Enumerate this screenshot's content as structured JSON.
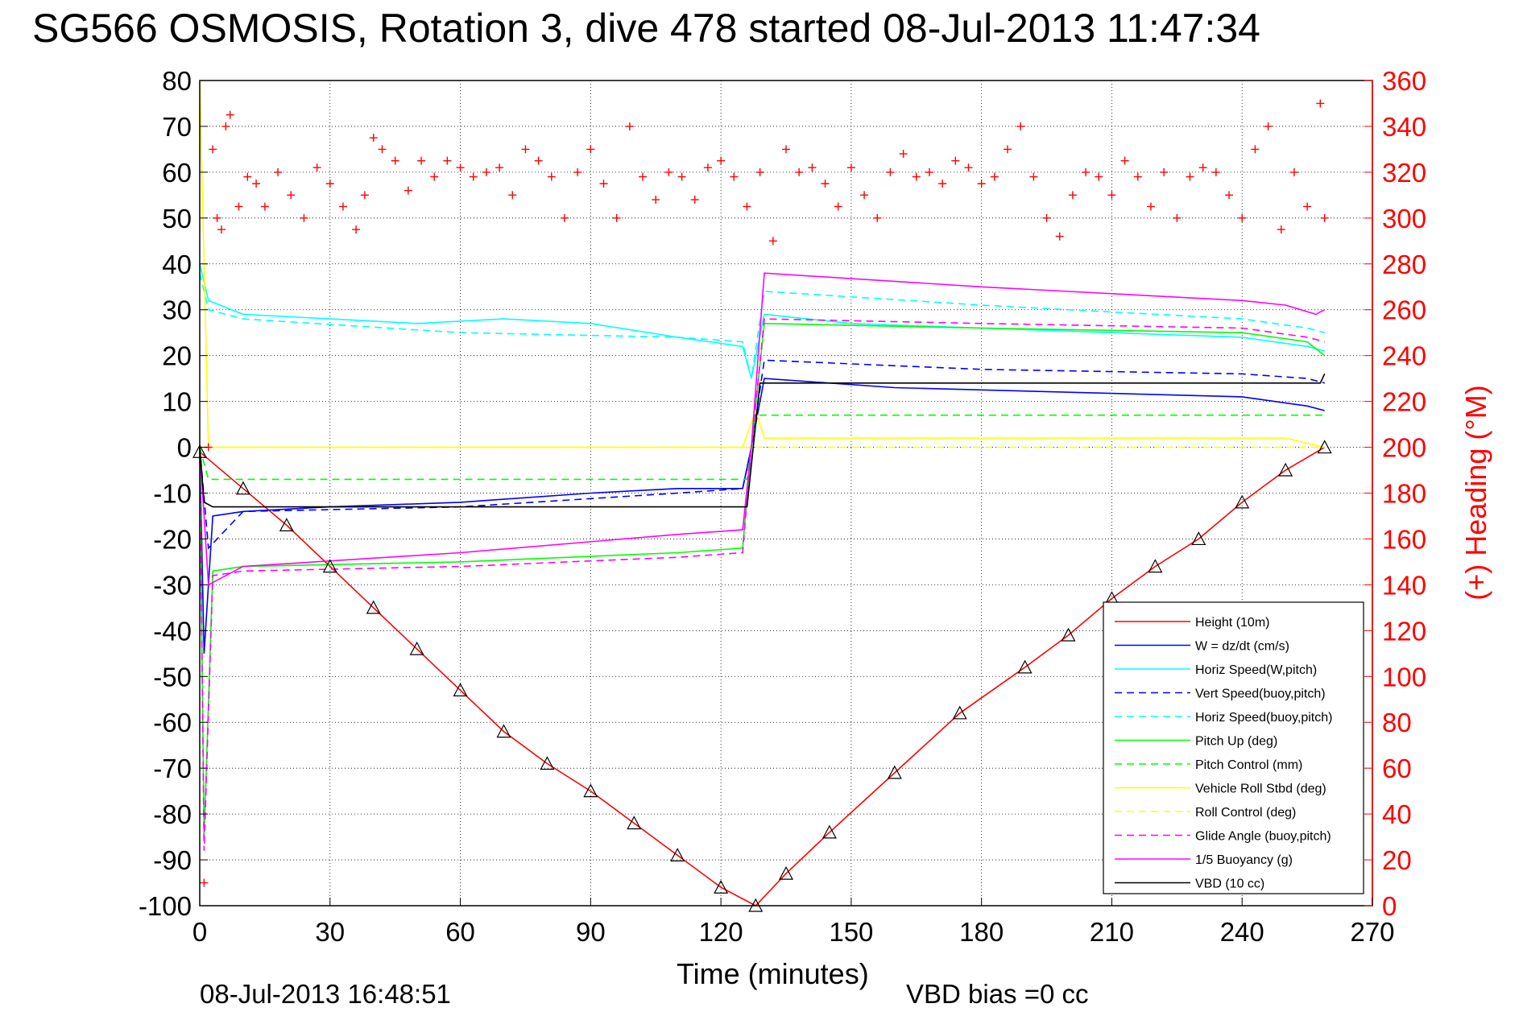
{
  "chart_data": {
    "type": "line",
    "title": "SG566 OSMOSIS, Rotation 3, dive 478 started 08-Jul-2013 11:47:34",
    "xlabel": "Time (minutes)",
    "ylabel_right": "(+) Heading (°M)",
    "xlim": [
      0,
      270
    ],
    "ylim": [
      -100,
      80
    ],
    "ylim_right": [
      0,
      360
    ],
    "x_ticks": [
      "0",
      "30",
      "60",
      "90",
      "120",
      "150",
      "180",
      "210",
      "240",
      "270"
    ],
    "y_ticks": [
      "80",
      "70",
      "60",
      "50",
      "40",
      "30",
      "20",
      "10",
      "0",
      "-10",
      "-20",
      "-30",
      "-40",
      "-50",
      "-60",
      "-70",
      "-80",
      "-90",
      "-100"
    ],
    "y_ticks_right": [
      "360",
      "340",
      "320",
      "300",
      "280",
      "260",
      "240",
      "220",
      "200",
      "180",
      "160",
      "140",
      "120",
      "100",
      "80",
      "60",
      "40",
      "20",
      "0"
    ],
    "grid": true,
    "legend_position": "lower-right",
    "footer_left": "08-Jul-2013 16:48:51",
    "footer_right": "VBD bias =0 cc",
    "series": [
      {
        "name": "Height (10m)",
        "color": "#ff0000",
        "style": "solid",
        "x": [
          0,
          10,
          20,
          30,
          40,
          50,
          60,
          70,
          80,
          90,
          100,
          110,
          120,
          128,
          135,
          145,
          160,
          175,
          190,
          200,
          210,
          220,
          230,
          240,
          250,
          259
        ],
        "y": [
          -1,
          -9,
          -17,
          -26,
          -35,
          -44,
          -53,
          -62,
          -69,
          -75,
          -82,
          -89,
          -96,
          -100,
          -93,
          -84,
          -71,
          -58,
          -48,
          -41,
          -33,
          -26,
          -20,
          -12,
          -5,
          0
        ]
      },
      {
        "name": "W = dz/dt (cm/s)",
        "color": "#0000ff",
        "style": "solid",
        "x": [
          0,
          1,
          3,
          10,
          30,
          60,
          90,
          110,
          125,
          127,
          130,
          160,
          200,
          240,
          255,
          259
        ],
        "y": [
          0,
          -45,
          -15,
          -14,
          -13,
          -12,
          -10,
          -9,
          -9,
          0,
          15,
          13,
          12,
          11,
          9,
          8
        ]
      },
      {
        "name": "Horiz Speed(W,pitch)",
        "color": "#00ffff",
        "style": "solid",
        "x": [
          0,
          2,
          10,
          30,
          50,
          70,
          90,
          110,
          125,
          127,
          130,
          150,
          180,
          210,
          240,
          255,
          259
        ],
        "y": [
          40,
          32,
          29,
          28,
          27,
          28,
          27,
          24,
          22,
          15,
          29,
          27,
          26,
          25,
          24,
          22,
          21
        ]
      },
      {
        "name": "Vert Speed(buoy,pitch)",
        "color": "#0000ff",
        "style": "dashed",
        "x": [
          0,
          2,
          10,
          60,
          110,
          125,
          127,
          130,
          180,
          240,
          255,
          259
        ],
        "y": [
          0,
          -22,
          -14,
          -13,
          -10,
          -9,
          0,
          19,
          17,
          16,
          15,
          14
        ]
      },
      {
        "name": "Horiz Speed(buoy,pitch)",
        "color": "#00ffff",
        "style": "dashed",
        "x": [
          0,
          2,
          10,
          60,
          110,
          125,
          127,
          130,
          180,
          240,
          255,
          259
        ],
        "y": [
          38,
          30,
          28,
          25,
          24,
          23,
          15,
          34,
          31,
          28,
          26,
          25
        ]
      },
      {
        "name": "Pitch Up (deg)",
        "color": "#00ff00",
        "style": "solid",
        "x": [
          0,
          1,
          3,
          10,
          60,
          110,
          125,
          127,
          130,
          180,
          240,
          255,
          259
        ],
        "y": [
          0,
          -85,
          -27,
          -26,
          -25,
          -23,
          -22,
          0,
          27,
          26,
          25,
          23,
          20
        ]
      },
      {
        "name": "Pitch Control (mm)",
        "color": "#00ff00",
        "style": "dashed",
        "x": [
          0,
          2,
          126,
          128,
          259
        ],
        "y": [
          0,
          -7,
          -7,
          7,
          7
        ]
      },
      {
        "name": "Vehicle Roll Stbd (deg)",
        "color": "#ffff00",
        "style": "solid",
        "x": [
          0,
          2,
          5,
          125,
          128,
          130,
          250,
          259
        ],
        "y": [
          80,
          0,
          0,
          0,
          8,
          2,
          2,
          0
        ]
      },
      {
        "name": "Roll Control (deg)",
        "color": "#ffff00",
        "style": "dashed",
        "x": [
          0,
          2,
          126,
          128,
          259
        ],
        "y": [
          0,
          0,
          0,
          0,
          0
        ]
      },
      {
        "name": "Glide Angle (buoy,pitch)",
        "color": "#ff00ff",
        "style": "dashed",
        "x": [
          0,
          1,
          3,
          10,
          60,
          110,
          125,
          127,
          130,
          180,
          240,
          255,
          259
        ],
        "y": [
          0,
          -88,
          -28,
          -27,
          -26,
          -24,
          -23,
          0,
          28,
          27,
          26,
          24,
          23
        ]
      },
      {
        "name": "1/5 Buoyancy (g)",
        "color": "#ff00ff",
        "style": "solid",
        "x": [
          0,
          2,
          10,
          60,
          110,
          125,
          127,
          130,
          180,
          240,
          250,
          257,
          259
        ],
        "y": [
          0,
          -30,
          -26,
          -23,
          -19,
          -18,
          0,
          38,
          35,
          32,
          31,
          29,
          30
        ]
      },
      {
        "name": "VBD (10 cc)",
        "color": "#000000",
        "style": "solid",
        "x": [
          0,
          1,
          3,
          126,
          129,
          258,
          259
        ],
        "y": [
          0,
          -12,
          -13,
          -13,
          14,
          14,
          16
        ]
      }
    ],
    "heading_series": {
      "name": "Heading",
      "color": "#ff0000",
      "marker": "+",
      "axis": "right",
      "x": [
        1,
        2,
        3,
        4,
        5,
        6,
        7,
        9,
        11,
        13,
        15,
        18,
        21,
        24,
        27,
        30,
        33,
        36,
        38,
        40,
        42,
        45,
        48,
        51,
        54,
        57,
        60,
        63,
        66,
        69,
        72,
        75,
        78,
        81,
        84,
        87,
        90,
        93,
        96,
        99,
        102,
        105,
        108,
        111,
        114,
        117,
        120,
        123,
        126,
        129,
        132,
        135,
        138,
        141,
        144,
        147,
        150,
        153,
        156,
        159,
        162,
        165,
        168,
        171,
        174,
        177,
        180,
        183,
        186,
        189,
        192,
        195,
        198,
        201,
        204,
        207,
        210,
        213,
        216,
        219,
        222,
        225,
        228,
        231,
        234,
        237,
        240,
        243,
        246,
        249,
        252,
        255,
        258,
        259
      ],
      "y": [
        10,
        200,
        330,
        300,
        295,
        340,
        345,
        305,
        318,
        315,
        305,
        320,
        310,
        300,
        322,
        315,
        305,
        295,
        310,
        335,
        330,
        325,
        312,
        325,
        318,
        325,
        322,
        318,
        320,
        322,
        310,
        330,
        325,
        318,
        300,
        320,
        330,
        315,
        300,
        340,
        318,
        308,
        320,
        318,
        308,
        322,
        325,
        318,
        305,
        320,
        290,
        330,
        320,
        322,
        315,
        305,
        322,
        310,
        300,
        320,
        328,
        318,
        320,
        315,
        325,
        322,
        315,
        318,
        330,
        340,
        318,
        300,
        292,
        310,
        320,
        318,
        310,
        325,
        318,
        305,
        320,
        300,
        318,
        322,
        320,
        310,
        300,
        330,
        340,
        295,
        320,
        305,
        350,
        300
      ]
    }
  }
}
